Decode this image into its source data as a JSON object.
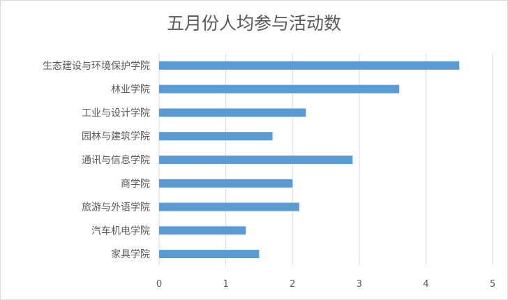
{
  "chart_data": {
    "type": "bar",
    "orientation": "horizontal",
    "title": "五月份人均参与活动数",
    "categories": [
      "生态建设与环境保护学院",
      "林业学院",
      "工业与设计学院",
      "园林与建筑学院",
      "通讯与信息学院",
      "商学院",
      "旅游与外语学院",
      "汽车机电学院",
      "家具学院"
    ],
    "values": [
      4.5,
      3.6,
      2.2,
      1.7,
      2.9,
      2.0,
      2.1,
      1.3,
      1.5
    ],
    "xlim": [
      0,
      5
    ],
    "xticks": [
      "0",
      "1",
      "2",
      "3",
      "4",
      "5"
    ],
    "xlabel": "",
    "ylabel": "",
    "grid": "vertical",
    "legend": "none",
    "colors": {
      "bar": "#5b9bd5",
      "grid": "#d9d9d9",
      "text": "#595959"
    }
  }
}
